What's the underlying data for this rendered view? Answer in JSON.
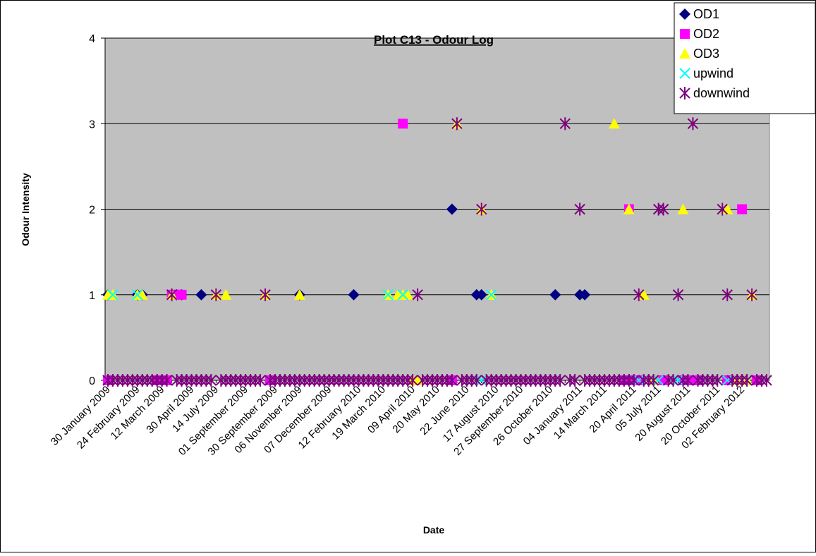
{
  "chart_data": {
    "type": "scatter",
    "title": "Plot  C13 - Odour Log",
    "xlabel": "Date",
    "ylabel": "Odour Intensity",
    "ylim": [
      0,
      4
    ],
    "yticks": [
      0,
      1,
      2,
      3,
      4
    ],
    "grid": true,
    "legend_position": "top-right",
    "plot_background": "#c0c0c0",
    "x_tick_labels": [
      "30 January 2009",
      "24 February 2009",
      "12 March 2009",
      "30 April 2009",
      "14 July 2009",
      "01 September 2009",
      "30 September 2009",
      "06 November 2009",
      "07 December 2009",
      "12 February 2010",
      "19 March 2010",
      "09 April 2010",
      "20 May 2010",
      "22 June 2010",
      "17 August 2010",
      "27 September 2010",
      "26 October 2010",
      "04 January 2011",
      "14 March 2011",
      "20 April 2011",
      "05 July 2011",
      "20 August 2011",
      "20 October 2011",
      "02 February 2012"
    ],
    "series": [
      {
        "name": "OD1",
        "marker": "diamond",
        "color": "#000080",
        "x": [
          1,
          7,
          8,
          15,
          16,
          20,
          40,
          51,
          71,
          76,
          77,
          92,
          97,
          98
        ],
        "y": [
          1,
          1,
          1,
          1,
          1,
          1,
          1,
          1,
          2,
          1,
          1,
          1,
          1,
          1
        ]
      },
      {
        "name": "OD2",
        "marker": "square",
        "color": "#ff00ff",
        "x": [
          1,
          11,
          12,
          13,
          14,
          15,
          16,
          34,
          61,
          71,
          106,
          107,
          108,
          109,
          114,
          118,
          119,
          120,
          121,
          127,
          130,
          133
        ],
        "y": [
          0,
          0,
          0,
          0,
          1,
          1,
          1,
          0,
          3,
          0,
          0,
          2,
          0,
          0,
          0,
          0,
          0,
          0,
          0,
          0,
          2,
          0
        ]
      },
      {
        "name": "OD3",
        "marker": "triangle",
        "color": "#ffff00",
        "x": [
          1,
          2,
          7,
          8,
          14,
          23,
          25,
          33,
          40,
          58,
          60,
          61,
          62,
          63,
          64,
          72,
          77,
          79,
          104,
          107,
          110,
          112,
          118,
          127,
          129,
          130,
          131,
          132
        ],
        "y": [
          1,
          1,
          1,
          1,
          1,
          1,
          1,
          1,
          1,
          1,
          1,
          1,
          1,
          0,
          0,
          3,
          2,
          1,
          3,
          2,
          1,
          0,
          2,
          2,
          0,
          0,
          0,
          1
        ]
      },
      {
        "name": "upwind",
        "marker": "x",
        "color": "#00ffff",
        "x": [
          1,
          2,
          7,
          8,
          14,
          15,
          34,
          40,
          58,
          60,
          61,
          71,
          76,
          77,
          79,
          106,
          108,
          109,
          113,
          117,
          118,
          119,
          121,
          122,
          125,
          127,
          130,
          131
        ],
        "y": [
          0,
          1,
          1,
          0,
          1,
          0,
          0,
          0,
          1,
          0,
          1,
          0,
          0,
          0,
          1,
          0,
          0,
          0,
          0,
          0,
          0,
          0,
          0,
          0,
          0,
          0,
          0,
          0
        ]
      },
      {
        "name": "downwind",
        "marker": "asterisk",
        "color": "#800080",
        "x": [
          1,
          2,
          3,
          4,
          5,
          6,
          7,
          8,
          9,
          10,
          11,
          12,
          13,
          14,
          15,
          16,
          17,
          18,
          19,
          20,
          21,
          22,
          23,
          24,
          25,
          26,
          27,
          28,
          29,
          30,
          31,
          32,
          33,
          34,
          35,
          36,
          37,
          38,
          39,
          40,
          41,
          42,
          43,
          44,
          45,
          46,
          47,
          48,
          49,
          50,
          51,
          52,
          53,
          54,
          55,
          56,
          57,
          58,
          59,
          60,
          61,
          62,
          63,
          64,
          65,
          66,
          67,
          68,
          69,
          70,
          71,
          72,
          73,
          74,
          75,
          76,
          77,
          78,
          79,
          80,
          81,
          82,
          83,
          84,
          85,
          86,
          87,
          88,
          89,
          90,
          91,
          92,
          93,
          94,
          95,
          96,
          97,
          98,
          99,
          100,
          101,
          102,
          103,
          104,
          105,
          106,
          107,
          108,
          109,
          110,
          111,
          112,
          113,
          114,
          115,
          116,
          117,
          118,
          119,
          120,
          121,
          122,
          123,
          124,
          125,
          126,
          127,
          128,
          129,
          130,
          131,
          132,
          133,
          134,
          135
        ],
        "y": [
          0,
          0,
          0,
          0,
          0,
          0,
          0,
          0,
          0,
          0,
          0,
          0,
          0,
          1,
          0,
          0,
          0,
          0,
          0,
          0,
          0,
          0,
          1,
          0,
          0,
          0,
          0,
          0,
          0,
          0,
          0,
          0,
          1,
          0,
          0,
          0,
          0,
          0,
          0,
          0,
          0,
          0,
          0,
          0,
          0,
          0,
          0,
          0,
          0,
          0,
          0,
          0,
          0,
          0,
          0,
          0,
          0,
          0,
          0,
          0,
          0,
          0,
          0,
          1,
          0,
          0,
          0,
          0,
          0,
          0,
          0,
          3,
          0,
          0,
          0,
          0,
          2,
          0,
          0,
          0,
          0,
          0,
          0,
          0,
          0,
          0,
          0,
          0,
          0,
          0,
          0,
          0,
          0,
          3,
          0,
          0,
          2,
          0,
          0,
          0,
          0,
          0,
          0,
          0,
          0,
          0,
          0,
          0,
          1,
          0,
          0,
          0,
          2,
          2,
          0,
          0,
          1,
          0,
          0,
          3,
          0,
          0,
          0,
          0,
          0,
          2,
          1,
          0,
          0,
          0,
          0,
          1,
          0,
          0,
          0
        ]
      }
    ]
  }
}
